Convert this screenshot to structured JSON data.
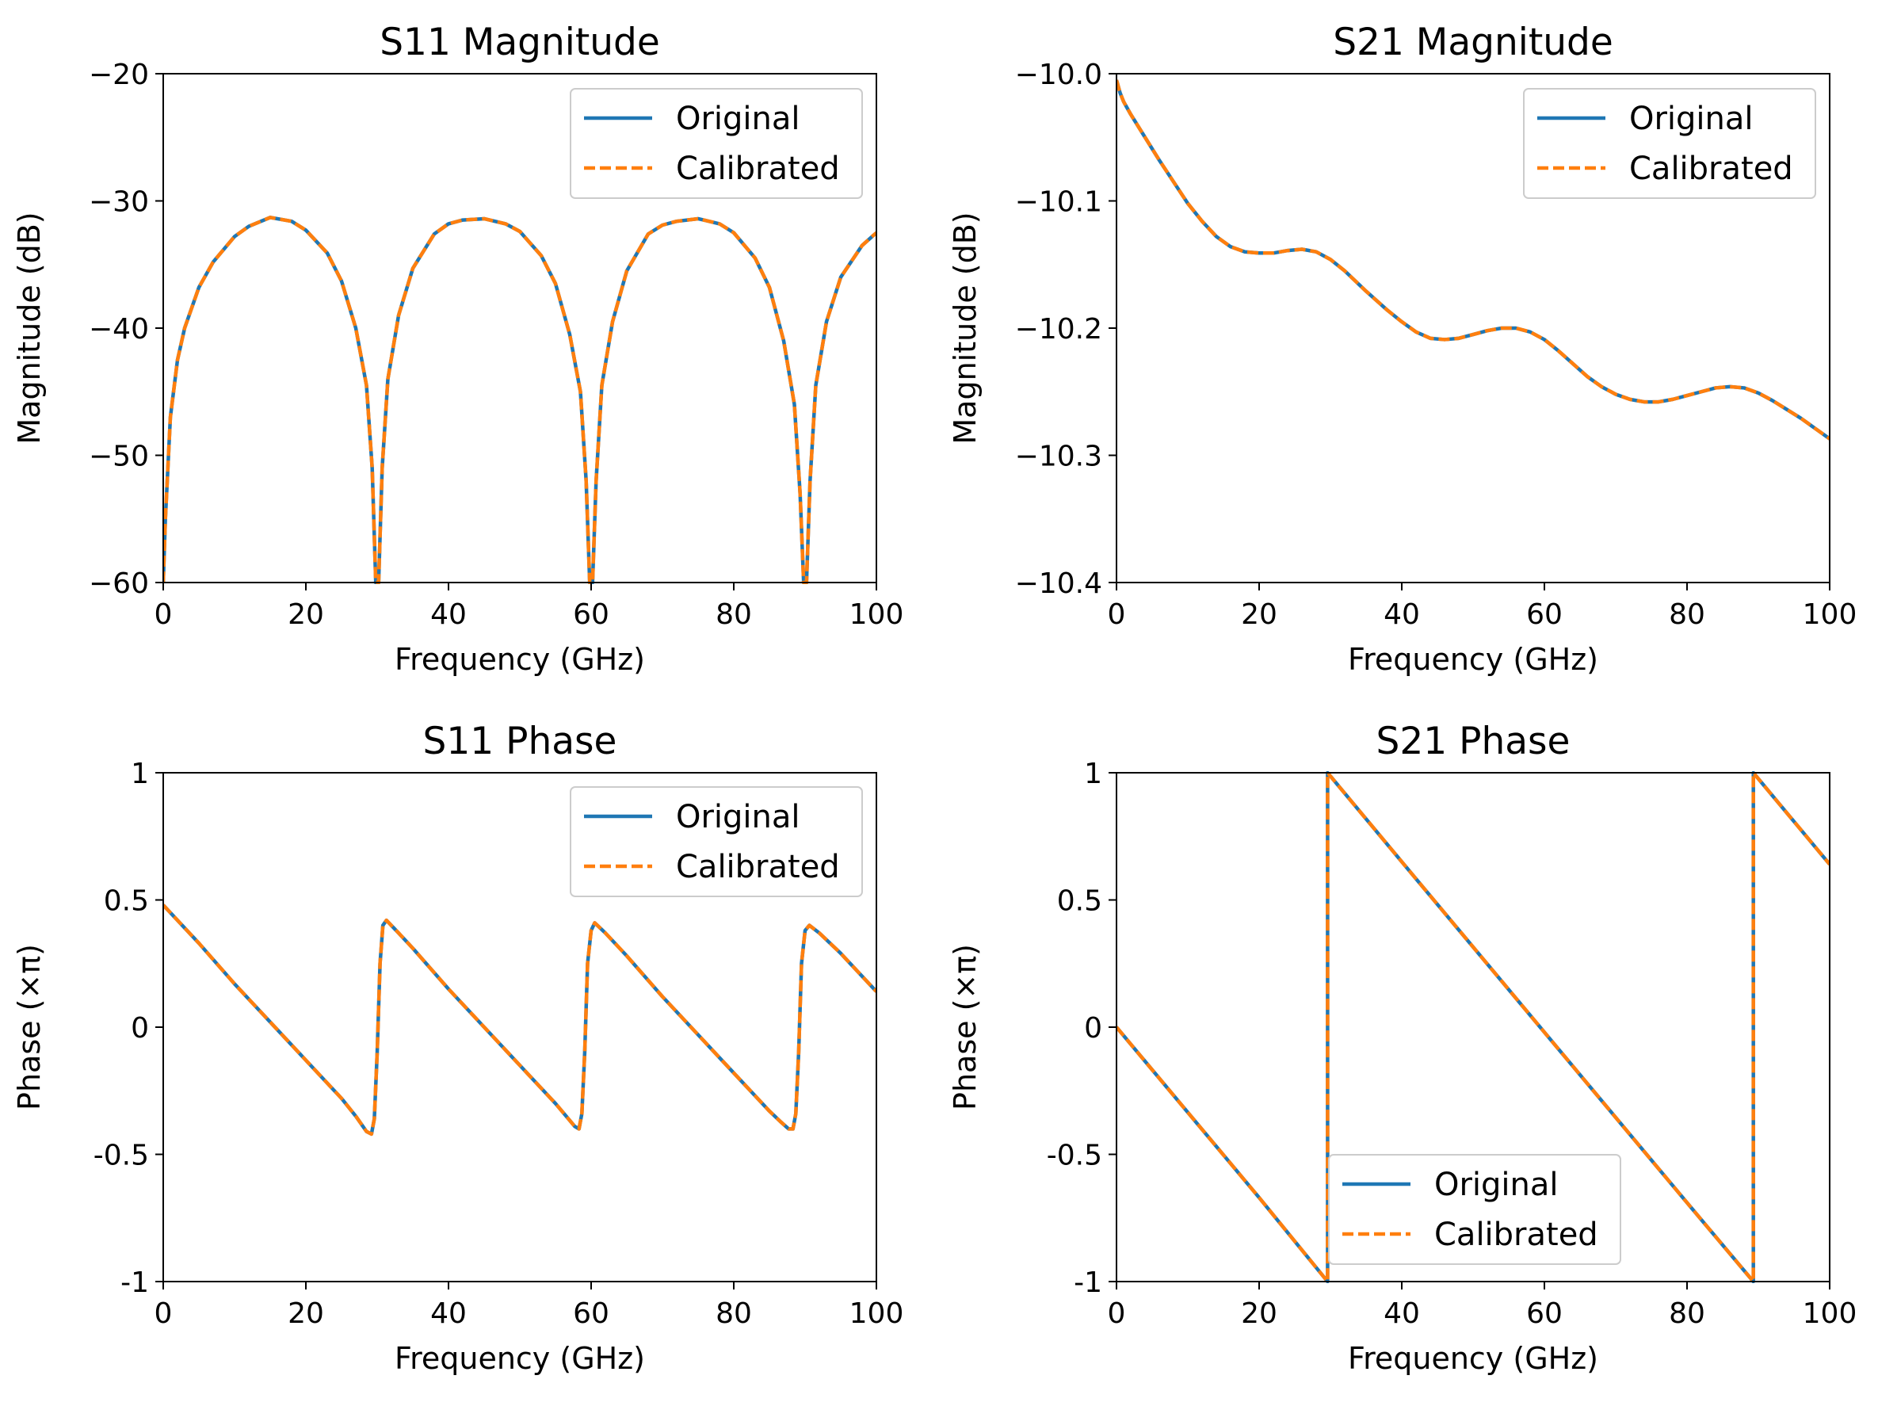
{
  "chart_data": [
    {
      "type": "line",
      "title": "S11 Magnitude",
      "xlabel": "Frequency (GHz)",
      "ylabel": "Magnitude (dB)",
      "xlim": [
        0,
        100
      ],
      "ylim": [
        -60,
        -20
      ],
      "xticks": [
        0,
        20,
        40,
        60,
        80,
        100
      ],
      "yticks": [
        -60,
        -50,
        -40,
        -30,
        -20
      ],
      "xtick_labels": [
        "0",
        "20",
        "40",
        "60",
        "80",
        "100"
      ],
      "ytick_labels": [
        "−60",
        "−50",
        "−40",
        "−30",
        "−20"
      ],
      "legend_position": "upper-right",
      "grid": false,
      "series": [
        {
          "name": "Original",
          "color": "#1f77b4",
          "style": "solid",
          "x": [
            0,
            0.3,
            1,
            2,
            3,
            5,
            7,
            10,
            12,
            15,
            18,
            20,
            23,
            25,
            27,
            28.5,
            29.3,
            29.8,
            30.2,
            30.7,
            31.5,
            33,
            35,
            38,
            40,
            42,
            45,
            48,
            50,
            53,
            55,
            57,
            58.5,
            59.3,
            59.8,
            60.2,
            60.7,
            61.5,
            63,
            65,
            68,
            70,
            72,
            75,
            78,
            80,
            83,
            85,
            87,
            88.5,
            89.3,
            89.8,
            90.2,
            90.7,
            91.5,
            93,
            95,
            98,
            100
          ],
          "y": [
            -60,
            -55,
            -47,
            -42.5,
            -40,
            -36.8,
            -34.8,
            -32.8,
            -32,
            -31.3,
            -31.6,
            -32.3,
            -34.1,
            -36.3,
            -40,
            -44.5,
            -51,
            -60,
            -60,
            -51,
            -44,
            -39,
            -35.3,
            -32.6,
            -31.8,
            -31.5,
            -31.4,
            -31.8,
            -32.4,
            -34.3,
            -36.5,
            -40.5,
            -45,
            -52,
            -60,
            -60,
            -52,
            -44.5,
            -39.5,
            -35.5,
            -32.6,
            -31.9,
            -31.6,
            -31.4,
            -31.8,
            -32.5,
            -34.5,
            -36.8,
            -41,
            -46,
            -53,
            -60,
            -60,
            -52,
            -44.5,
            -39.5,
            -36,
            -33.5,
            -32.5
          ]
        },
        {
          "name": "Calibrated",
          "color": "#ff7f0e",
          "style": "dashed",
          "x": [
            0,
            0.3,
            1,
            2,
            3,
            5,
            7,
            10,
            12,
            15,
            18,
            20,
            23,
            25,
            27,
            28.5,
            29.3,
            29.8,
            30.2,
            30.7,
            31.5,
            33,
            35,
            38,
            40,
            42,
            45,
            48,
            50,
            53,
            55,
            57,
            58.5,
            59.3,
            59.8,
            60.2,
            60.7,
            61.5,
            63,
            65,
            68,
            70,
            72,
            75,
            78,
            80,
            83,
            85,
            87,
            88.5,
            89.3,
            89.8,
            90.2,
            90.7,
            91.5,
            93,
            95,
            98,
            100
          ],
          "y": [
            -60,
            -55,
            -47,
            -42.5,
            -40,
            -36.8,
            -34.8,
            -32.8,
            -32,
            -31.3,
            -31.6,
            -32.3,
            -34.1,
            -36.3,
            -40,
            -44.5,
            -51,
            -60,
            -60,
            -51,
            -44,
            -39,
            -35.3,
            -32.6,
            -31.8,
            -31.5,
            -31.4,
            -31.8,
            -32.4,
            -34.3,
            -36.5,
            -40.5,
            -45,
            -52,
            -60,
            -60,
            -52,
            -44.5,
            -39.5,
            -35.5,
            -32.6,
            -31.9,
            -31.6,
            -31.4,
            -31.8,
            -32.5,
            -34.5,
            -36.8,
            -41,
            -46,
            -53,
            -60,
            -60,
            -52,
            -44.5,
            -39.5,
            -36,
            -33.5,
            -32.5
          ]
        }
      ]
    },
    {
      "type": "line",
      "title": "S21 Magnitude",
      "xlabel": "Frequency (GHz)",
      "ylabel": "Magnitude (dB)",
      "xlim": [
        0,
        100
      ],
      "ylim": [
        -10.4,
        -10.0
      ],
      "xticks": [
        0,
        20,
        40,
        60,
        80,
        100
      ],
      "yticks": [
        -10.4,
        -10.3,
        -10.2,
        -10.1,
        -10.0
      ],
      "xtick_labels": [
        "0",
        "20",
        "40",
        "60",
        "80",
        "100"
      ],
      "ytick_labels": [
        "−10.4",
        "−10.3",
        "−10.2",
        "−10.1",
        "−10.0"
      ],
      "legend_position": "upper-right",
      "grid": false,
      "series": [
        {
          "name": "Original",
          "color": "#1f77b4",
          "style": "solid",
          "x": [
            0,
            0.5,
            1,
            2,
            4,
            6,
            8,
            10,
            12,
            14,
            16,
            18,
            20,
            22,
            24,
            26,
            28,
            30,
            32,
            35,
            38,
            40,
            42,
            44,
            46,
            48,
            50,
            52,
            54,
            56,
            58,
            60,
            62,
            64,
            66,
            68,
            70,
            72,
            74,
            76,
            78,
            80,
            82,
            84,
            86,
            88,
            90,
            92,
            94,
            96,
            98,
            100
          ],
          "y": [
            -10.005,
            -10.015,
            -10.022,
            -10.032,
            -10.05,
            -10.068,
            -10.085,
            -10.102,
            -10.116,
            -10.128,
            -10.136,
            -10.14,
            -10.141,
            -10.141,
            -10.139,
            -10.138,
            -10.14,
            -10.146,
            -10.155,
            -10.171,
            -10.186,
            -10.195,
            -10.203,
            -10.208,
            -10.209,
            -10.208,
            -10.205,
            -10.202,
            -10.2,
            -10.2,
            -10.203,
            -10.209,
            -10.218,
            -10.228,
            -10.238,
            -10.246,
            -10.252,
            -10.256,
            -10.258,
            -10.258,
            -10.256,
            -10.253,
            -10.25,
            -10.247,
            -10.246,
            -10.247,
            -10.251,
            -10.257,
            -10.264,
            -10.271,
            -10.279,
            -10.287
          ]
        },
        {
          "name": "Calibrated",
          "color": "#ff7f0e",
          "style": "dashed",
          "x": [
            0,
            0.5,
            1,
            2,
            4,
            6,
            8,
            10,
            12,
            14,
            16,
            18,
            20,
            22,
            24,
            26,
            28,
            30,
            32,
            35,
            38,
            40,
            42,
            44,
            46,
            48,
            50,
            52,
            54,
            56,
            58,
            60,
            62,
            64,
            66,
            68,
            70,
            72,
            74,
            76,
            78,
            80,
            82,
            84,
            86,
            88,
            90,
            92,
            94,
            96,
            98,
            100
          ],
          "y": [
            -10.005,
            -10.015,
            -10.022,
            -10.032,
            -10.05,
            -10.068,
            -10.085,
            -10.102,
            -10.116,
            -10.128,
            -10.136,
            -10.14,
            -10.141,
            -10.141,
            -10.139,
            -10.138,
            -10.14,
            -10.146,
            -10.155,
            -10.171,
            -10.186,
            -10.195,
            -10.203,
            -10.208,
            -10.209,
            -10.208,
            -10.205,
            -10.202,
            -10.2,
            -10.2,
            -10.203,
            -10.209,
            -10.218,
            -10.228,
            -10.238,
            -10.246,
            -10.252,
            -10.256,
            -10.258,
            -10.258,
            -10.256,
            -10.253,
            -10.25,
            -10.247,
            -10.246,
            -10.247,
            -10.251,
            -10.257,
            -10.264,
            -10.271,
            -10.279,
            -10.287
          ]
        }
      ]
    },
    {
      "type": "line",
      "title": "S11 Phase",
      "xlabel": "Frequency (GHz)",
      "ylabel": "Phase (×π)",
      "xlim": [
        0,
        100
      ],
      "ylim": [
        -1,
        1
      ],
      "xticks": [
        0,
        20,
        40,
        60,
        80,
        100
      ],
      "yticks": [
        -1,
        -0.5,
        0,
        0.5,
        1
      ],
      "xtick_labels": [
        "0",
        "20",
        "40",
        "60",
        "80",
        "100"
      ],
      "ytick_labels": [
        "-1",
        "-0.5",
        "0",
        "0.5",
        "1"
      ],
      "legend_position": "upper-right",
      "grid": false,
      "series": [
        {
          "name": "Original",
          "color": "#1f77b4",
          "style": "solid",
          "x": [
            0,
            5,
            10,
            15,
            20,
            25,
            27,
            28.5,
            29.2,
            29.6,
            30,
            30.4,
            30.8,
            31.3,
            33,
            35,
            40,
            45,
            50,
            55,
            56.5,
            57.7,
            58.3,
            58.7,
            59.1,
            59.5,
            60,
            60.5,
            62,
            65,
            70,
            75,
            80,
            85,
            86.5,
            87.7,
            88.3,
            88.7,
            89.1,
            89.5,
            90,
            90.6,
            92,
            95,
            100
          ],
          "y": [
            0.48,
            0.33,
            0.17,
            0.02,
            -0.13,
            -0.28,
            -0.35,
            -0.41,
            -0.42,
            -0.36,
            -0.1,
            0.25,
            0.4,
            0.42,
            0.37,
            0.31,
            0.15,
            0.0,
            -0.15,
            -0.3,
            -0.35,
            -0.39,
            -0.4,
            -0.34,
            -0.1,
            0.25,
            0.38,
            0.41,
            0.37,
            0.28,
            0.12,
            -0.03,
            -0.18,
            -0.33,
            -0.37,
            -0.4,
            -0.4,
            -0.34,
            -0.1,
            0.25,
            0.38,
            0.4,
            0.37,
            0.29,
            0.14
          ]
        },
        {
          "name": "Calibrated",
          "color": "#ff7f0e",
          "style": "dashed",
          "x": [
            0,
            5,
            10,
            15,
            20,
            25,
            27,
            28.5,
            29.2,
            29.6,
            30,
            30.4,
            30.8,
            31.3,
            33,
            35,
            40,
            45,
            50,
            55,
            56.5,
            57.7,
            58.3,
            58.7,
            59.1,
            59.5,
            60,
            60.5,
            62,
            65,
            70,
            75,
            80,
            85,
            86.5,
            87.7,
            88.3,
            88.7,
            89.1,
            89.5,
            90,
            90.6,
            92,
            95,
            100
          ],
          "y": [
            0.48,
            0.33,
            0.17,
            0.02,
            -0.13,
            -0.28,
            -0.35,
            -0.41,
            -0.42,
            -0.36,
            -0.1,
            0.25,
            0.4,
            0.42,
            0.37,
            0.31,
            0.15,
            0.0,
            -0.15,
            -0.3,
            -0.35,
            -0.39,
            -0.4,
            -0.34,
            -0.1,
            0.25,
            0.38,
            0.41,
            0.37,
            0.28,
            0.12,
            -0.03,
            -0.18,
            -0.33,
            -0.37,
            -0.4,
            -0.4,
            -0.34,
            -0.1,
            0.25,
            0.38,
            0.4,
            0.37,
            0.29,
            0.14
          ]
        }
      ]
    },
    {
      "type": "line",
      "title": "S21 Phase",
      "xlabel": "Frequency (GHz)",
      "ylabel": "Phase (×π)",
      "xlim": [
        0,
        100
      ],
      "ylim": [
        -1,
        1
      ],
      "xticks": [
        0,
        20,
        40,
        60,
        80,
        100
      ],
      "yticks": [
        -1,
        -0.5,
        0,
        0.5,
        1
      ],
      "xtick_labels": [
        "0",
        "20",
        "40",
        "60",
        "80",
        "100"
      ],
      "ytick_labels": [
        "-1",
        "-0.5",
        "0",
        "0.5",
        "1"
      ],
      "legend_position": "lower-center",
      "grid": false,
      "series": [
        {
          "name": "Original",
          "color": "#1f77b4",
          "style": "solid",
          "x": [
            0,
            10,
            20,
            29.6,
            29.6,
            40,
            60,
            80,
            89.3,
            89.3,
            100
          ],
          "y": [
            0,
            -0.335,
            -0.67,
            -1.0,
            1.0,
            0.65,
            -0.02,
            -0.69,
            -1.0,
            1.0,
            0.64
          ]
        },
        {
          "name": "Calibrated",
          "color": "#ff7f0e",
          "style": "dashed",
          "x": [
            0,
            10,
            20,
            29.6,
            29.6,
            40,
            60,
            80,
            89.3,
            89.3,
            100
          ],
          "y": [
            0,
            -0.335,
            -0.67,
            -1.0,
            1.0,
            0.65,
            -0.02,
            -0.69,
            -1.0,
            1.0,
            0.64
          ]
        }
      ]
    }
  ]
}
